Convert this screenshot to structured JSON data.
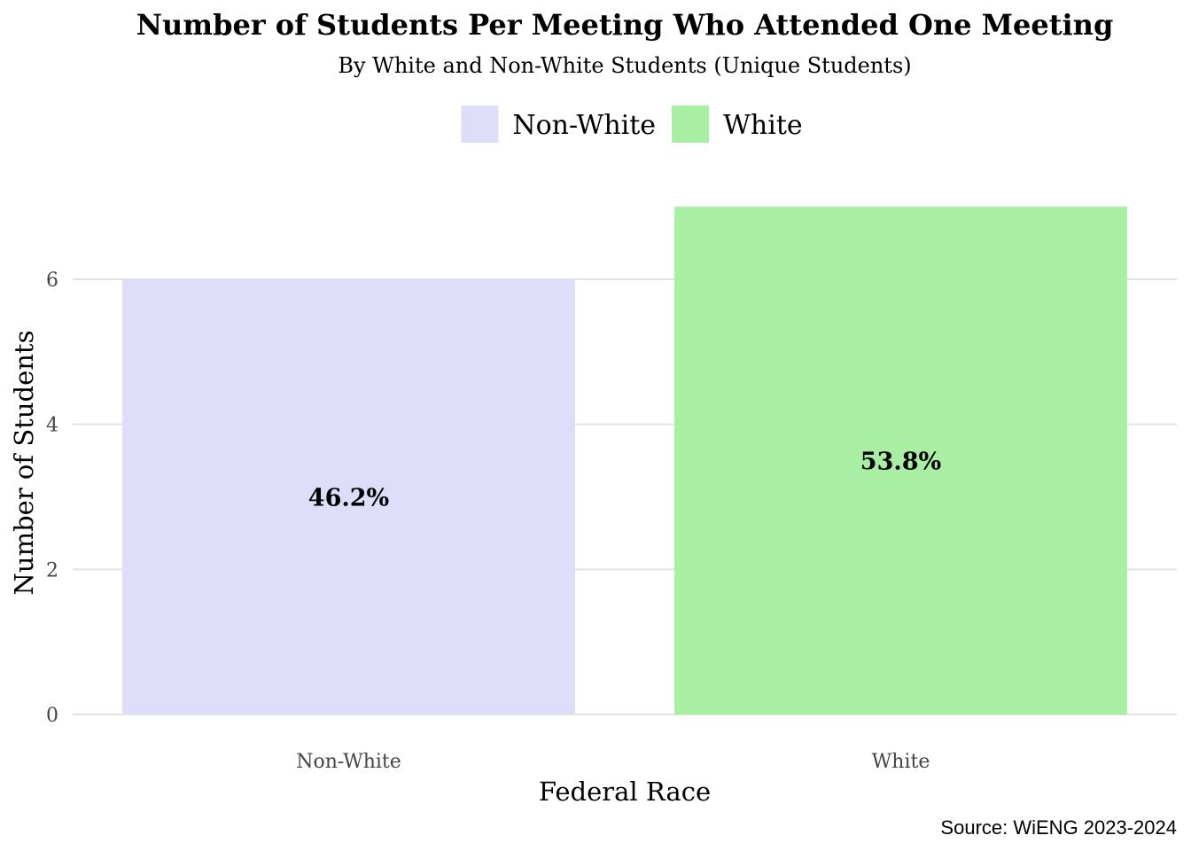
{
  "chart_data": {
    "type": "bar",
    "title": "Number of Students Per Meeting Who Attended One Meeting",
    "subtitle": "By White and Non-White Students (Unique Students)",
    "xlabel": "Federal Race",
    "ylabel": "Number of Students",
    "caption": "Source: WiENG 2023-2024",
    "categories": [
      "Non-White",
      "White"
    ],
    "values": [
      6,
      7
    ],
    "data_labels": [
      "46.2%",
      "53.8%"
    ],
    "colors": [
      "#dedefa",
      "#a8eea3"
    ],
    "ylim": [
      0,
      7
    ],
    "yticks": [
      0,
      2,
      4,
      6
    ],
    "grid": "horizontal",
    "legend": {
      "position": "top",
      "entries": [
        {
          "name": "Non-White",
          "color": "#dedefa"
        },
        {
          "name": "White",
          "color": "#a8eea3"
        }
      ]
    }
  }
}
